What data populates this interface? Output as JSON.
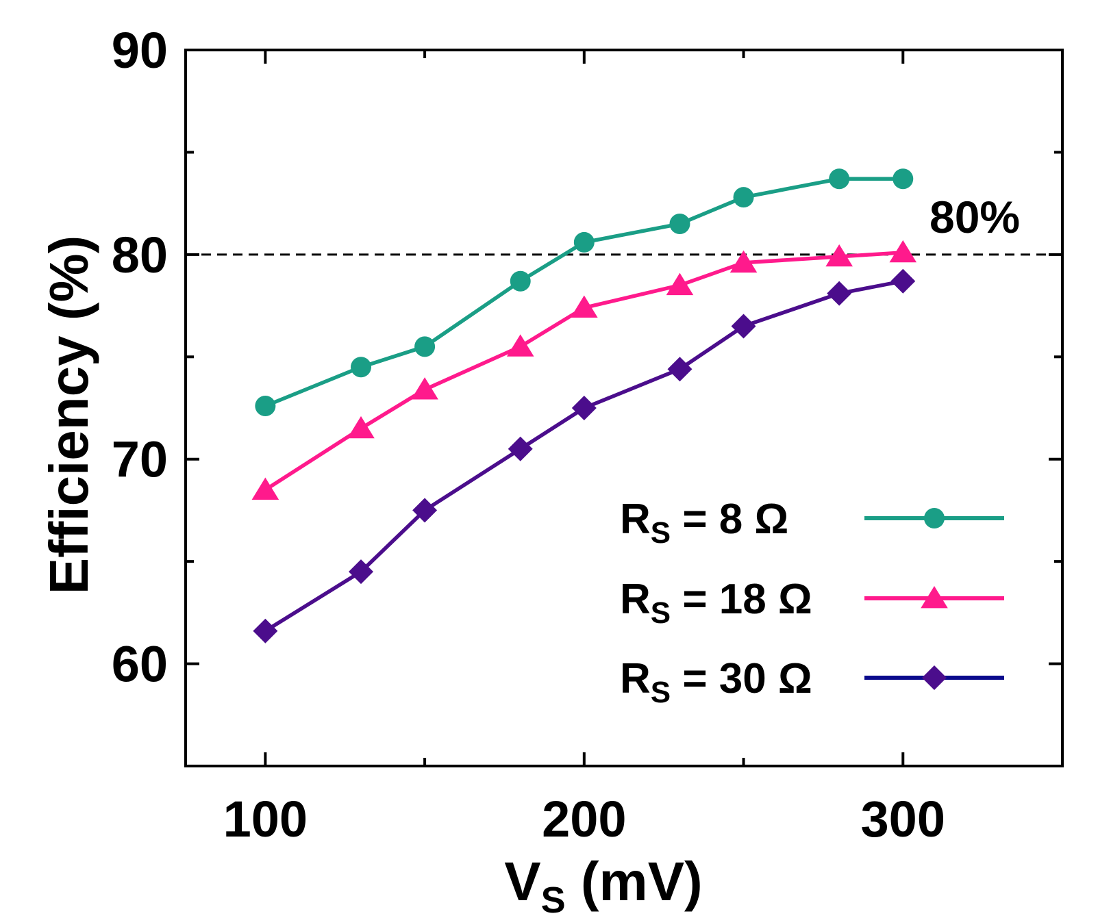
{
  "chart_data": {
    "type": "line",
    "title": "",
    "xlabel": "V",
    "xlabel_sub": "S",
    "xlabel_unit": "(mV)",
    "ylabel": "Efficiency (%)",
    "xlim": [
      75,
      350
    ],
    "ylim": [
      55,
      90
    ],
    "xticks": [
      100,
      200,
      300
    ],
    "yticks": [
      60,
      70,
      80,
      90
    ],
    "x_minor_ticks": [
      150,
      250
    ],
    "y_minor_ticks": [
      65,
      75,
      85
    ],
    "grid": false,
    "legend_position": "bottom-right",
    "reference_line": {
      "y": 80,
      "style": "dashed",
      "label": "80%"
    },
    "series": [
      {
        "name": "R",
        "name_sub": "S",
        "name_suffix": " = 8 Ω",
        "color": "#1a9e86",
        "marker": "circle",
        "x": [
          100,
          130,
          150,
          180,
          200,
          230,
          250,
          280,
          300
        ],
        "values": [
          72.6,
          74.5,
          75.5,
          78.7,
          80.6,
          81.5,
          82.8,
          83.7,
          83.7
        ]
      },
      {
        "name": "R",
        "name_sub": "S",
        "name_suffix": " = 18 Ω",
        "color": "#ff1a8c",
        "marker": "triangle",
        "x": [
          100,
          130,
          150,
          180,
          200,
          230,
          250,
          280,
          300
        ],
        "values": [
          68.5,
          71.5,
          73.4,
          75.5,
          77.4,
          78.5,
          79.6,
          79.9,
          80.1
        ]
      },
      {
        "name": "R",
        "name_sub": "S",
        "name_suffix": " = 30 Ω",
        "color": "#4b0d8c",
        "legend_line_color": "#0a0a8c",
        "marker": "diamond",
        "x": [
          100,
          130,
          150,
          180,
          200,
          230,
          250,
          280,
          300
        ],
        "values": [
          61.6,
          64.5,
          67.5,
          70.5,
          72.5,
          74.4,
          76.5,
          78.1,
          78.7
        ]
      }
    ]
  }
}
